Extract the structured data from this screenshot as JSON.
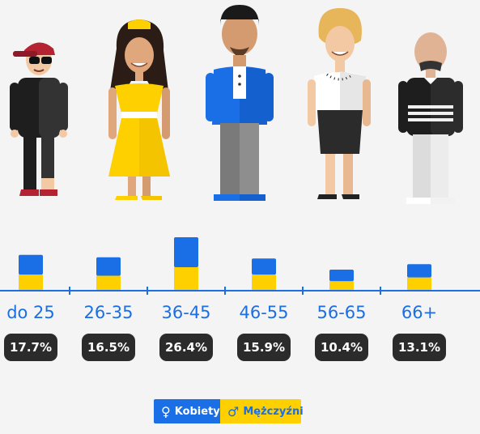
{
  "chart_data": {
    "type": "bar",
    "stacked": true,
    "categories": [
      "do 25",
      "26-35",
      "36-45",
      "46-55",
      "56-65",
      "66+"
    ],
    "values_percent": [
      "17.7%",
      "16.5%",
      "26.4%",
      "15.9%",
      "10.4%",
      "13.1%"
    ],
    "values": [
      17.7,
      16.5,
      26.4,
      15.9,
      10.4,
      13.1
    ],
    "women_share": [
      0.55,
      0.55,
      0.56,
      0.5,
      0.55,
      0.5
    ],
    "colors": {
      "women": "#1a6ee6",
      "men": "#ffd000",
      "axis": "#1a6ee6",
      "pill": "#2b2b2b"
    },
    "legend": [
      {
        "label": "Kobiety",
        "icon": "female-symbol-icon",
        "color": "#1a6ee6"
      },
      {
        "label": "Mężczyźni",
        "icon": "male-symbol-icon",
        "color": "#ffd000"
      }
    ],
    "grid": false
  },
  "figures": [
    {
      "name": "person-young-man-cap"
    },
    {
      "name": "person-woman-yellow-dress"
    },
    {
      "name": "person-man-blue-jacket"
    },
    {
      "name": "person-woman-blonde"
    },
    {
      "name": "person-senior-man"
    }
  ],
  "legend_icons": {
    "female": "♀",
    "male": "♂"
  }
}
